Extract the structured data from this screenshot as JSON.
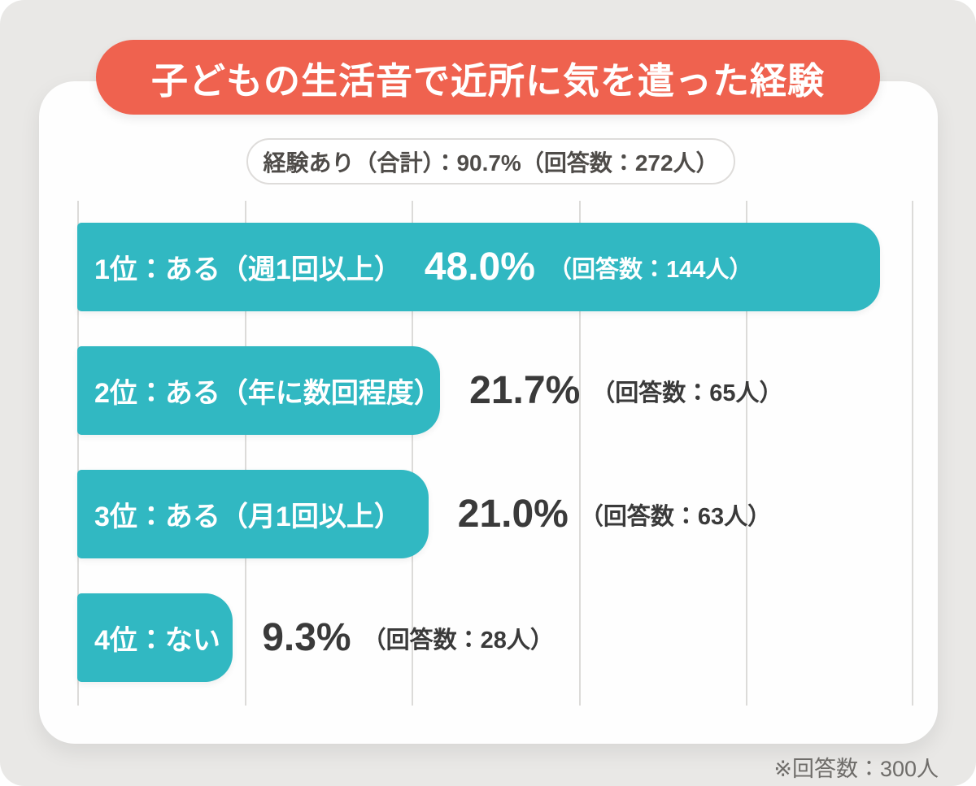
{
  "title": {
    "text": "子どもの生活音で近所に気を遣った経験",
    "bg_color": "#ef624f",
    "text_color": "#ffffff"
  },
  "summary": {
    "text": "経験あり（合計）：90.7%（回答数：272人）"
  },
  "chart_data": {
    "type": "bar",
    "orientation": "horizontal",
    "title": "子どもの生活音で近所に気を遣った経験",
    "categories": [
      "1位：ある（週1回以上）",
      "2位：ある（年に数回程度）",
      "3位：ある（月1回以上）",
      "4位：ない"
    ],
    "values": [
      48.0,
      21.7,
      21.0,
      9.3
    ],
    "value_labels": [
      "48.0%",
      "21.7%",
      "21.0%",
      "9.3%"
    ],
    "counts": [
      144,
      65,
      63,
      28
    ],
    "count_labels": [
      "（回答数：144人）",
      "（回答数：65人）",
      "（回答数：63人）",
      "（回答数：28人）"
    ],
    "value_label_inside": [
      true,
      false,
      false,
      false
    ],
    "xlim": [
      0,
      50
    ],
    "gridline_interval": 10,
    "grid": "vertical-lines",
    "legend": "none",
    "bar_color": "#31b8c2",
    "bar_text_color": "#ffffff",
    "outside_text_color": "#3a3a3a",
    "summary_total": {
      "label": "経験あり（合計）",
      "value_pct": 90.7,
      "count": 272
    }
  },
  "footnote": {
    "text": "※回答数：300人"
  }
}
